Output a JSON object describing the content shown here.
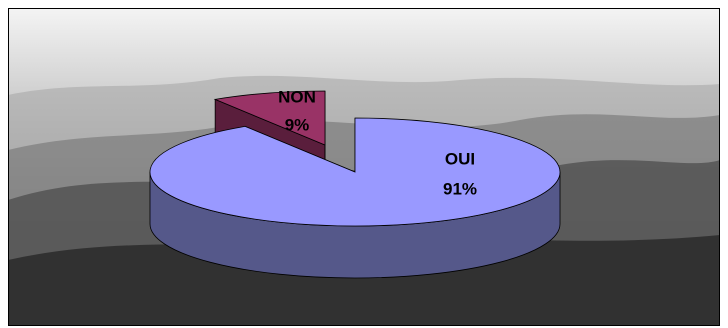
{
  "chart_data": {
    "type": "pie3d",
    "categories": [
      "OUI",
      "NON"
    ],
    "values": [
      91,
      9
    ],
    "value_labels": [
      "91%",
      "9%"
    ],
    "colors": [
      "#9999ff",
      "#993366"
    ],
    "side_colors": [
      "#55588a",
      "#5a1e3c"
    ]
  }
}
